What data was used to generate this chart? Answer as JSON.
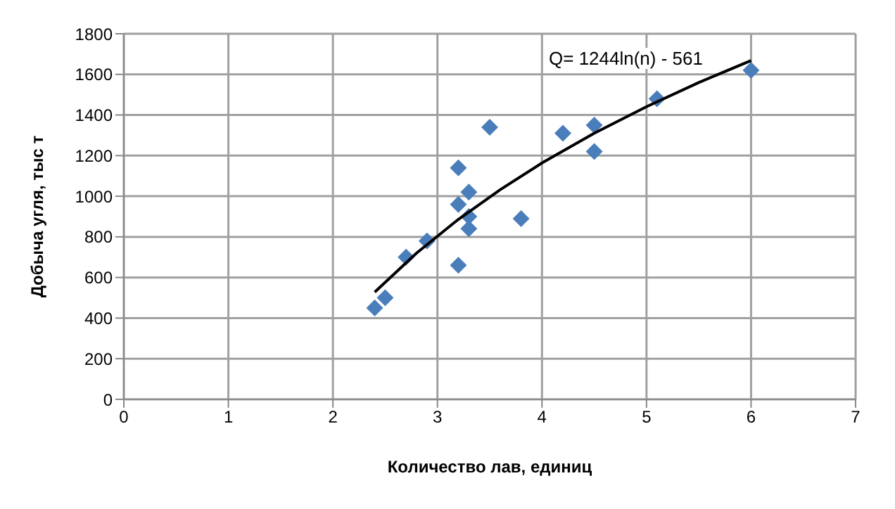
{
  "chart_data": {
    "type": "scatter",
    "xlabel": "Количество лав, единиц",
    "ylabel": "Добыча угля, тыс т",
    "xlim": [
      0,
      7
    ],
    "xticks": [
      0,
      1,
      2,
      3,
      4,
      5,
      6,
      7
    ],
    "ylim": [
      0,
      1800
    ],
    "yticks": [
      0,
      200,
      400,
      600,
      800,
      1000,
      1200,
      1400,
      1600,
      1800
    ],
    "grid": true,
    "legend": false,
    "series": [
      {
        "type": "scatter",
        "marker": "diamond",
        "color": "#4a7ebb",
        "x": [
          2.4,
          2.5,
          2.7,
          2.9,
          3.2,
          3.2,
          3.2,
          3.3,
          3.3,
          3.3,
          3.5,
          3.8,
          4.2,
          4.5,
          4.5,
          5.1,
          6
        ],
        "values": [
          450,
          500,
          700,
          780,
          660,
          960,
          1140,
          1020,
          900,
          840,
          1340,
          890,
          1310,
          1350,
          1220,
          1480,
          1620
        ]
      },
      {
        "type": "line",
        "marker": "none",
        "color": "#000000",
        "x": [
          2.4,
          2.8,
          3.2,
          3.6,
          4.0,
          4.5,
          5.0,
          5.5,
          6.0
        ],
        "values": [
          528,
          720,
          886,
          1032,
          1164,
          1310,
          1441,
          1560,
          1668
        ]
      }
    ],
    "annotations": [
      "Q= 1244ln(n) - 561"
    ]
  }
}
